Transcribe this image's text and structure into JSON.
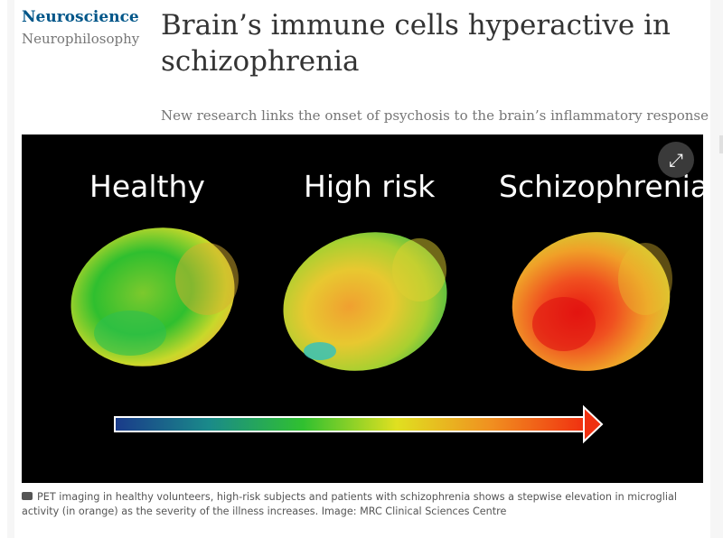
{
  "article": {
    "section": "Neuroscience",
    "series": "Neurophilosophy",
    "headline": "Brain’s immune cells hyperactive in schizophrenia",
    "standfirst": "New research links the onset of psychosis to the brain’s inflammatory response"
  },
  "figure": {
    "labels": [
      "Healthy",
      "High risk",
      "Schizophrenia"
    ],
    "expand_icon": "expand-icon",
    "caption": "PET imaging in healthy volunteers, high-risk subjects and patients with schizophrenia shows a stepwise elevation in microglial activity (in orange) as the severity of the illness increases. Image: MRC Clinical Sciences Centre"
  },
  "colors": {
    "section": "#005689",
    "headline": "#333333",
    "muted": "#767676"
  }
}
